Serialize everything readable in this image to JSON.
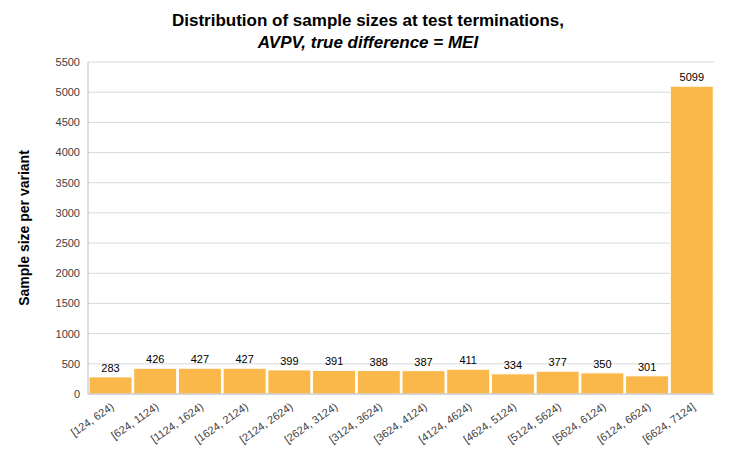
{
  "chart_data": {
    "type": "bar",
    "title": "Distribution of sample sizes at test terminations,",
    "subtitle": "AVPV, true difference = MEI",
    "y_label": "Sample size per variant",
    "categories": [
      "[124, 624)",
      "[624, 1124)",
      "[1124, 1624)",
      "[1624, 2124)",
      "[2124, 2624)",
      "[2624, 3124)",
      "[3124, 3624)",
      "[3624, 4124)",
      "[4124, 4624)",
      "[4624, 5124)",
      "[5124, 5624)",
      "[5624, 6124)",
      "[6124, 6624)",
      "[6624, 7124]"
    ],
    "values": [
      283,
      426,
      427,
      427,
      399,
      391,
      388,
      387,
      411,
      334,
      377,
      350,
      301,
      5099
    ],
    "color": "#fbb84a",
    "ylim": [
      0,
      5500
    ],
    "yticks": [
      0,
      500,
      1000,
      1500,
      2000,
      2500,
      3000,
      3500,
      4000,
      4500,
      5000,
      5500
    ],
    "grid": true,
    "data_labels": true
  }
}
